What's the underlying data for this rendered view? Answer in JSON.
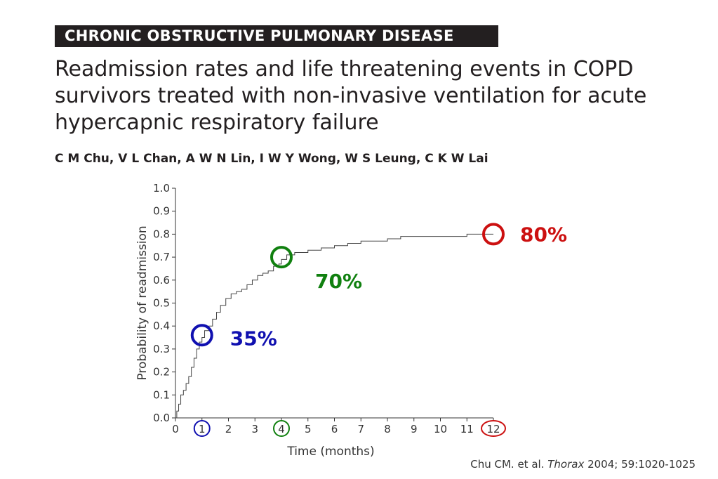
{
  "header": {
    "section_label": "CHRONIC OBSTRUCTIVE PULMONARY DISEASE"
  },
  "paper": {
    "title_lines": [
      "Readmission rates and life threatening events in COPD",
      "survivors treated with non-invasive ventilation for acute",
      "hypercapnic respiratory failure"
    ],
    "authors": "C M Chu, V L Chan, A W N Lin, I W Y Wong, W S Leung, C K W Lai"
  },
  "citation": {
    "prefix": "Chu CM. et al. ",
    "journal": "Thorax",
    "suffix": " 2004; 59:1020-1025"
  },
  "chart_data": {
    "type": "line",
    "title": "",
    "xlabel": "Time (months)",
    "ylabel": "Probability of readmission",
    "xlim": [
      0,
      12
    ],
    "ylim": [
      0,
      1.0
    ],
    "x_ticks": [
      "0",
      "1",
      "2",
      "3",
      "4",
      "5",
      "6",
      "7",
      "8",
      "9",
      "10",
      "11",
      "12"
    ],
    "y_ticks": [
      "0.0",
      "0.1",
      "0.2",
      "0.3",
      "0.4",
      "0.5",
      "0.6",
      "0.7",
      "0.8",
      "0.9",
      "1.0"
    ],
    "grid": false,
    "series": [
      {
        "step": true,
        "x": [
          0,
          0.05,
          0.12,
          0.2,
          0.3,
          0.4,
          0.5,
          0.6,
          0.7,
          0.8,
          0.9,
          1.0,
          1.1,
          1.25,
          1.4,
          1.55,
          1.7,
          1.9,
          2.1,
          2.3,
          2.5,
          2.7,
          2.9,
          3.1,
          3.3,
          3.5,
          3.7,
          3.9,
          4.0,
          4.2,
          4.5,
          5.0,
          5.5,
          6.0,
          6.5,
          7.0,
          7.5,
          8.0,
          8.5,
          9.0,
          10.0,
          11.0,
          11.5,
          12.0
        ],
        "y": [
          0,
          0.03,
          0.06,
          0.1,
          0.12,
          0.15,
          0.18,
          0.22,
          0.26,
          0.3,
          0.33,
          0.35,
          0.38,
          0.4,
          0.43,
          0.46,
          0.49,
          0.52,
          0.54,
          0.55,
          0.56,
          0.58,
          0.6,
          0.62,
          0.63,
          0.64,
          0.66,
          0.67,
          0.69,
          0.71,
          0.72,
          0.73,
          0.74,
          0.75,
          0.76,
          0.77,
          0.77,
          0.78,
          0.79,
          0.79,
          0.79,
          0.8,
          0.8,
          0.8
        ]
      }
    ],
    "annotations": [
      {
        "text": "35%",
        "x": 1,
        "y": 0.36,
        "color": "#1010b0"
      },
      {
        "text": "70%",
        "x": 4,
        "y": 0.7,
        "color": "#10800f"
      },
      {
        "text": "80%",
        "x": 12,
        "y": 0.8,
        "color": "#cc1010"
      }
    ],
    "highlighted_x_ticks": [
      {
        "tick": "1",
        "color": "#1010b0"
      },
      {
        "tick": "4",
        "color": "#10800f"
      },
      {
        "tick": "12",
        "color": "#cc1010"
      }
    ]
  }
}
